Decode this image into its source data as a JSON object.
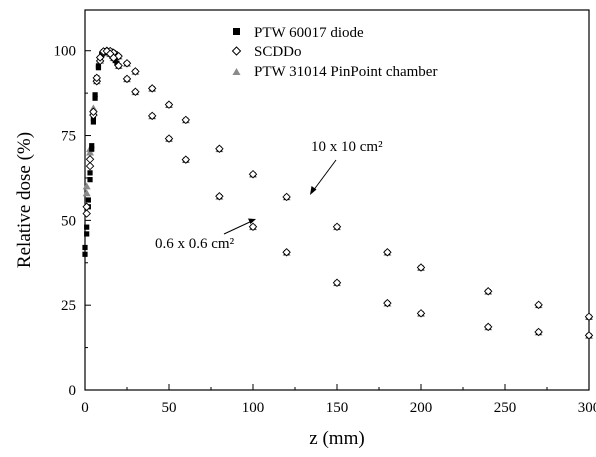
{
  "chart_data": {
    "type": "scatter",
    "title": "",
    "xlabel": "z (mm)",
    "ylabel": "Relative dose (%)",
    "xlim": [
      0,
      300
    ],
    "ylim": [
      0,
      112
    ],
    "xticks": [
      0,
      50,
      100,
      150,
      200,
      250,
      300
    ],
    "xtick_labels": [
      "0",
      "50",
      "100",
      "150",
      "200",
      "250",
      "300"
    ],
    "yticks": [
      0,
      25,
      50,
      75,
      100
    ],
    "ytick_labels": [
      "0",
      "25",
      "50",
      "75",
      "100"
    ],
    "grid": false,
    "legend_position": "top-right",
    "legend": [
      {
        "label": "PTW 60017 diode",
        "marker": "square",
        "color": "#000000"
      },
      {
        "label": "SCDDo",
        "marker": "diamond-open",
        "color": "#000000"
      },
      {
        "label": "PTW 31014 PinPoint chamber",
        "marker": "triangle",
        "color": "#8a8a8a"
      }
    ],
    "annotations": [
      {
        "text": "10 x 10 cm²",
        "arrow_to": {
          "x": 134,
          "y": 59
        }
      },
      {
        "text": "0.6 x 0.6 cm²",
        "arrow_to": {
          "x": 95,
          "y": 50
        }
      }
    ],
    "series": [
      {
        "name": "PTW 60017 diode",
        "field": "10 x 10 cm²",
        "marker": "square",
        "x": [
          0,
          1,
          2,
          3,
          4,
          5,
          6,
          7,
          8,
          9,
          10,
          11,
          12,
          13,
          14,
          15,
          16,
          17,
          18,
          19,
          20,
          25,
          30,
          40,
          50,
          60,
          80,
          100,
          120,
          150,
          180,
          200,
          240,
          270,
          300
        ],
        "y": [
          40,
          46,
          54,
          62,
          71,
          79,
          86,
          91,
          95,
          97.5,
          98.8,
          99.5,
          99.9,
          100,
          100,
          99.9,
          99.7,
          99.4,
          99.1,
          98.7,
          98.3,
          96.2,
          93.8,
          88.8,
          84.0,
          79.5,
          71.0,
          63.5,
          56.8,
          48.0,
          40.5,
          36.0,
          29.0,
          25.0,
          21.5
        ]
      },
      {
        "name": "SCDDo",
        "field": "10 x 10 cm²",
        "marker": "diamond-open",
        "x": [
          1,
          3,
          5,
          7,
          9,
          11,
          13,
          15,
          17,
          20,
          25,
          30,
          40,
          50,
          60,
          80,
          100,
          120,
          150,
          180,
          200,
          240,
          270,
          300
        ],
        "y": [
          52,
          66,
          81,
          91,
          97,
          99.4,
          100,
          99.9,
          99.4,
          98.4,
          96.3,
          93.9,
          88.9,
          84.1,
          79.6,
          71.1,
          63.6,
          56.9,
          48.1,
          40.6,
          36.1,
          29.1,
          25.1,
          21.6
        ]
      },
      {
        "name": "PTW 31014 PinPoint chamber",
        "field": "10 x 10 cm²",
        "marker": "triangle",
        "x": [
          1,
          3,
          5,
          7,
          9,
          11,
          13,
          15,
          17,
          20,
          25,
          30,
          40,
          50,
          60,
          80,
          100,
          120,
          150,
          180,
          200,
          240,
          270,
          300
        ],
        "y": [
          58,
          70,
          82,
          91,
          97,
          99.3,
          100,
          99.9,
          99.3,
          98.3,
          96.2,
          93.8,
          88.8,
          84.0,
          79.5,
          71.0,
          63.5,
          56.8,
          48.0,
          40.5,
          36.0,
          29.0,
          25.0,
          21.5
        ]
      },
      {
        "name": "PTW 60017 diode",
        "field": "0.6 x 0.6 cm²",
        "marker": "square",
        "x": [
          0,
          1,
          2,
          3,
          4,
          5,
          6,
          7,
          8,
          9,
          10,
          11,
          12,
          13,
          14,
          15,
          16,
          17,
          18,
          19,
          20,
          25,
          30,
          40,
          50,
          60,
          80,
          100,
          120,
          150,
          180,
          200,
          240,
          270,
          300
        ],
        "y": [
          42,
          48,
          56,
          64,
          72,
          80,
          87,
          92,
          95.5,
          97.8,
          99.0,
          99.7,
          100,
          99.9,
          99.5,
          99.0,
          98.4,
          97.8,
          97.1,
          96.3,
          95.5,
          91.6,
          87.8,
          80.7,
          74.0,
          67.8,
          57.0,
          48.0,
          40.5,
          31.5,
          25.5,
          22.5,
          18.5,
          17.0,
          16.0
        ]
      },
      {
        "name": "SCDDo",
        "field": "0.6 x 0.6 cm²",
        "marker": "diamond-open",
        "x": [
          1,
          3,
          5,
          7,
          9,
          11,
          13,
          15,
          17,
          20,
          25,
          30,
          40,
          50,
          60,
          80,
          100,
          120,
          150,
          180,
          200,
          240,
          270,
          300
        ],
        "y": [
          54,
          68,
          82,
          92,
          98,
          99.8,
          99.9,
          99.1,
          97.9,
          95.6,
          91.7,
          87.9,
          80.8,
          74.1,
          67.9,
          57.1,
          48.1,
          40.6,
          31.6,
          25.6,
          22.6,
          18.6,
          17.1,
          16.1
        ]
      },
      {
        "name": "PTW 31014 PinPoint chamber",
        "field": "0.6 x 0.6 cm²",
        "marker": "triangle",
        "x": [
          1,
          3,
          5,
          7,
          9,
          11,
          13,
          15,
          17,
          20,
          25,
          30,
          40,
          50,
          60,
          80,
          100,
          120,
          150,
          180,
          200,
          240,
          270,
          300
        ],
        "y": [
          60,
          71,
          83,
          92,
          97.5,
          99.6,
          99.8,
          99.0,
          97.8,
          95.5,
          91.6,
          87.8,
          80.7,
          74.0,
          67.8,
          57.0,
          48.0,
          40.5,
          31.5,
          25.5,
          22.5,
          18.5,
          17.0,
          16.0
        ]
      }
    ]
  }
}
